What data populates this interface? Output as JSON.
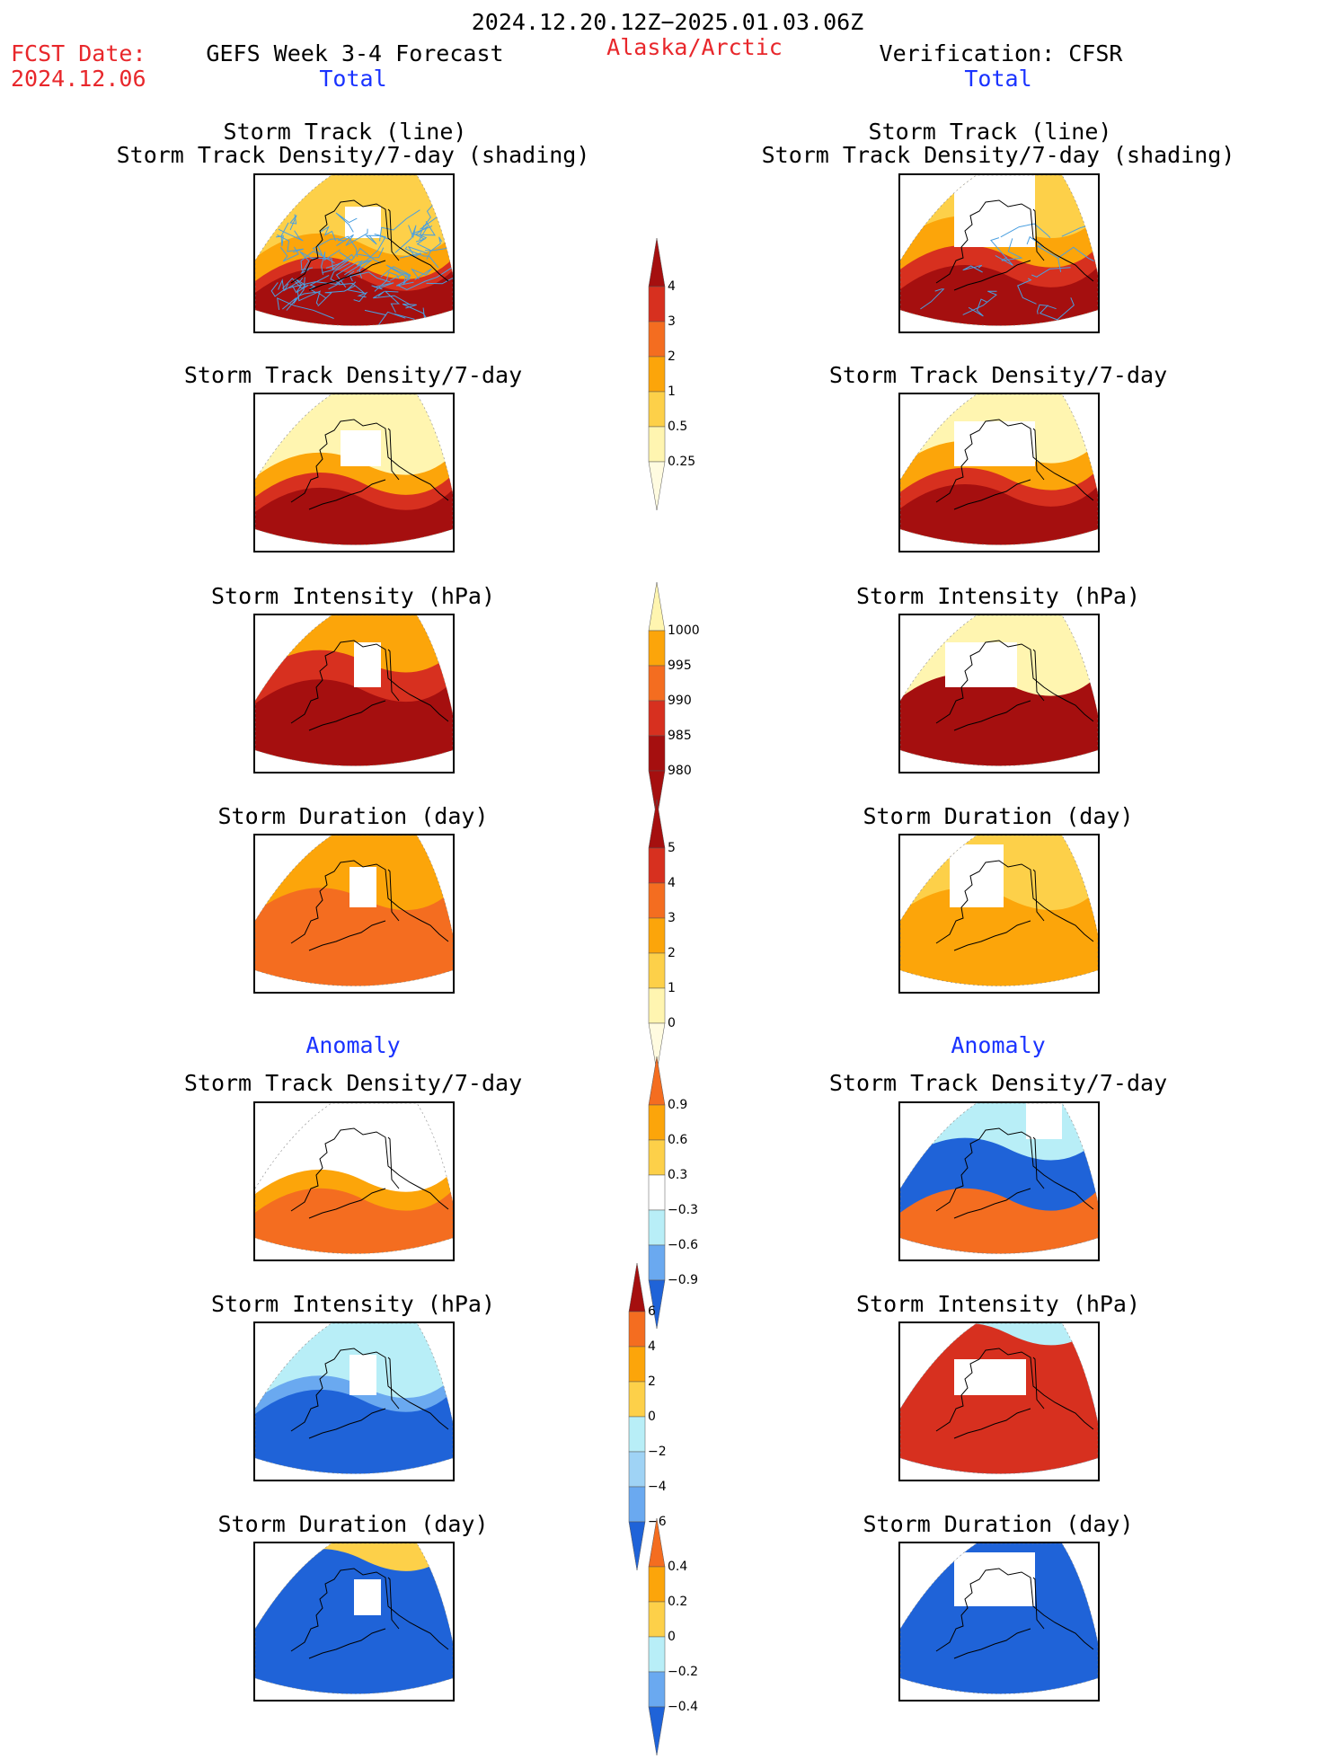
{
  "header": {
    "date_range": "2024.12.20.12Z−2025.01.03.06Z",
    "fcst_label": "FCST Date:",
    "fcst_date": "2024.12.06",
    "model": "GEFS Week 3-4 Forecast",
    "region": "Alaska/Arctic",
    "verification": "Verification: CFSR",
    "total_left": "Total",
    "total_right": "Total",
    "anomaly_left": "Anomaly",
    "anomaly_right": "Anomaly"
  },
  "panels": {
    "track_line": "Storm Track (line)",
    "track_shading": "Storm Track Density/7-day (shading)",
    "density": "Storm Track Density/7-day",
    "intensity": "Storm Intensity (hPa)",
    "duration": "Storm Duration (day)"
  },
  "colorbars": {
    "density_total": [
      "4",
      "3",
      "2",
      "1",
      "0.5",
      "0.25"
    ],
    "intensity_total": [
      "1000",
      "995",
      "990",
      "985",
      "980"
    ],
    "duration_total": [
      "5",
      "4",
      "3",
      "2",
      "1",
      "0"
    ],
    "density_anom": [
      "0.9",
      "0.6",
      "0.3",
      "−0.3",
      "−0.6",
      "−0.9"
    ],
    "intensity_anom": [
      "6",
      "4",
      "2",
      "0",
      "−2",
      "−4",
      "−6"
    ],
    "duration_anom": [
      "0.4",
      "0.2",
      "0",
      "−0.2",
      "−0.4"
    ]
  },
  "colors": {
    "title_red": "#e8272b",
    "title_blue": "#1a33ff",
    "dark_red": "#a50f0f",
    "red": "#d7301f",
    "orange_red": "#f46d20",
    "orange": "#fca50a",
    "light_orange": "#fdd049",
    "pale_yellow": "#fff5b0",
    "light_blue": "#b8eef7",
    "mid_blue": "#6aa9f0",
    "blue": "#1f63d8",
    "track_line": "#4a9fe0"
  }
}
